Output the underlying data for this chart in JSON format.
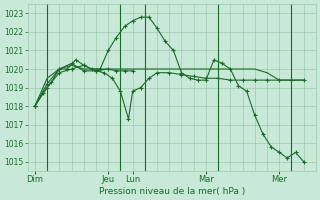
{
  "bg_color": "#c8e8d8",
  "grid_color": "#a0c8b0",
  "line_color": "#1a6b2a",
  "ylim": [
    1014.5,
    1023.5
  ],
  "yticks": [
    1015,
    1016,
    1017,
    1018,
    1019,
    1020,
    1021,
    1022,
    1023
  ],
  "xlabel": "Pression niveau de la mer( hPa )",
  "day_labels": [
    "Dim",
    "Jeu",
    "Lun",
    "Mar",
    "Mer"
  ],
  "day_x": [
    0,
    3,
    4,
    7,
    10
  ],
  "xlim": [
    -0.3,
    11.5
  ],
  "vline_x": [
    0.5,
    3.5,
    4.5,
    7.5,
    10.5
  ],
  "series": [
    {
      "x": [
        0,
        0.33,
        0.67,
        1.0,
        1.33,
        1.67,
        2.0,
        2.33,
        2.67,
        3.0,
        3.33,
        3.67,
        4.0,
        4.33,
        4.67,
        5.0,
        5.33,
        5.67,
        6.0,
        6.33,
        6.67,
        7.0,
        7.33,
        7.67,
        8.0,
        8.33,
        8.67,
        9.0,
        9.33,
        9.67,
        10.0,
        10.33,
        10.67,
        11.0
      ],
      "y": [
        1018.0,
        1018.7,
        1019.3,
        1020.0,
        1020.0,
        1020.5,
        1020.2,
        1020.0,
        1020.0,
        1021.0,
        1021.7,
        1022.3,
        1022.6,
        1022.8,
        1022.8,
        1022.2,
        1021.5,
        1021.0,
        1019.8,
        1019.5,
        1019.4,
        1019.4,
        1020.5,
        1020.3,
        1020.0,
        1019.1,
        1018.8,
        1017.5,
        1016.5,
        1015.8,
        1015.5,
        1015.2,
        1015.5,
        1015.0
      ],
      "marker": true
    },
    {
      "x": [
        0,
        0.5,
        1.0,
        1.5,
        2.0,
        2.5,
        3.0,
        3.5,
        4.0,
        4.5,
        5.0,
        5.5,
        6.0,
        6.5,
        7.0,
        7.5,
        8.0,
        8.5,
        9.0,
        9.5,
        10.0,
        10.5,
        11.0
      ],
      "y": [
        1018.0,
        1019.5,
        1020.0,
        1020.2,
        1020.0,
        1020.0,
        1020.0,
        1020.0,
        1020.0,
        1020.0,
        1020.0,
        1020.0,
        1020.0,
        1020.0,
        1020.0,
        1020.0,
        1020.0,
        1020.0,
        1020.0,
        1019.8,
        1019.4,
        1019.4,
        1019.4
      ],
      "marker": false
    },
    {
      "x": [
        0,
        0.5,
        1.0,
        1.5,
        2.0,
        2.5,
        2.83,
        3.17,
        3.5,
        3.83,
        4.0,
        4.33,
        4.67,
        5.0,
        5.5,
        6.0,
        6.5,
        7.0,
        7.5,
        8.0,
        8.5,
        9.0,
        9.5,
        10.0,
        10.5,
        11.0
      ],
      "y": [
        1018.0,
        1019.0,
        1019.8,
        1020.0,
        1020.2,
        1019.9,
        1019.8,
        1019.5,
        1018.8,
        1017.3,
        1018.8,
        1019.0,
        1019.5,
        1019.8,
        1019.8,
        1019.7,
        1019.6,
        1019.5,
        1019.5,
        1019.4,
        1019.4,
        1019.4,
        1019.4,
        1019.4,
        1019.4,
        1019.4
      ],
      "marker": true
    },
    {
      "x": [
        0,
        0.5,
        1.0,
        1.5,
        2.0,
        2.5,
        3.0,
        3.33,
        3.67,
        4.0
      ],
      "y": [
        1018.0,
        1019.2,
        1020.0,
        1020.3,
        1019.9,
        1019.9,
        1020.0,
        1019.9,
        1019.9,
        1019.9
      ],
      "marker": true
    }
  ]
}
